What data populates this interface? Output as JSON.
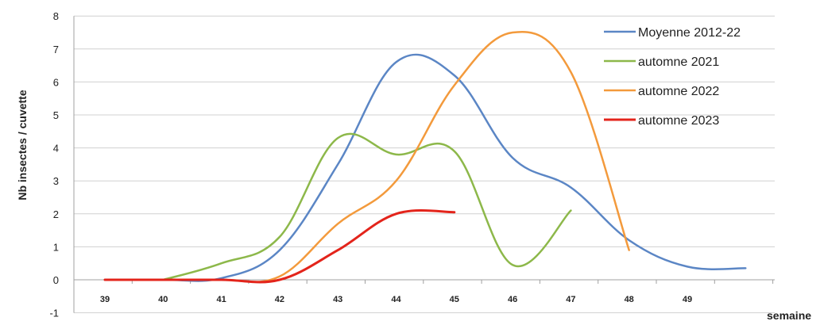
{
  "chart_data": {
    "type": "line",
    "ylabel": "Nb insectes / cuvette",
    "xlabel": "semaine",
    "ylim": [
      -1,
      8
    ],
    "yticks": [
      -1,
      0,
      1,
      2,
      3,
      4,
      5,
      6,
      7,
      8
    ],
    "xticks": [
      "39",
      "40",
      "41",
      "42",
      "43",
      "44",
      "45",
      "46",
      "47",
      "48",
      "49"
    ],
    "grid": true,
    "legend_position": "top-right",
    "series": [
      {
        "name": "Moyenne 2012-22",
        "color": "#5b86c5",
        "x": [
          39,
          40,
          41,
          42,
          43,
          44,
          45,
          46,
          47,
          48,
          49,
          50
        ],
        "y": [
          0,
          0,
          0.05,
          0.9,
          3.5,
          6.6,
          6.2,
          3.7,
          2.8,
          1.2,
          0.4,
          0.35
        ]
      },
      {
        "name": "automne 2021",
        "color": "#8db84a",
        "x": [
          40,
          41,
          42,
          43,
          44,
          45,
          46,
          47
        ],
        "y": [
          0,
          0.5,
          1.3,
          4.3,
          3.8,
          3.9,
          0.45,
          2.1
        ]
      },
      {
        "name": "automne 2022",
        "color": "#f39a3c",
        "x": [
          39,
          40,
          41,
          42,
          43,
          44,
          45,
          46,
          47,
          48
        ],
        "y": [
          0,
          0,
          0,
          0.1,
          1.7,
          3.0,
          5.9,
          7.5,
          6.3,
          0.9
        ]
      },
      {
        "name": "automne 2023",
        "color": "#e3241b",
        "x": [
          39,
          40,
          41,
          42,
          43,
          44,
          45
        ],
        "y": [
          0,
          0,
          0,
          0,
          0.9,
          2.0,
          2.05
        ]
      }
    ]
  }
}
